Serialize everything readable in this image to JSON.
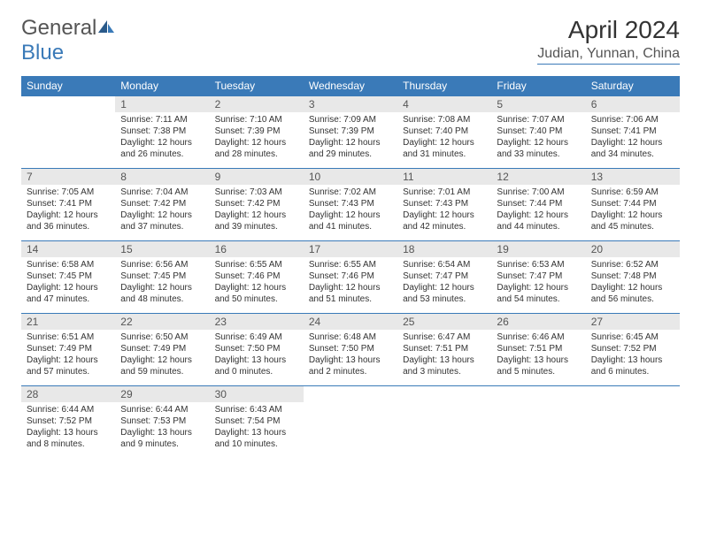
{
  "logo": {
    "text1": "General",
    "text2": "Blue"
  },
  "title": "April 2024",
  "location": "Judian, Yunnan, China",
  "colors": {
    "header_bg": "#3a7ab8",
    "header_fg": "#ffffff",
    "daynum_bg": "#e8e8e8",
    "border": "#3a7ab8",
    "text": "#333333"
  },
  "weekdays": [
    "Sunday",
    "Monday",
    "Tuesday",
    "Wednesday",
    "Thursday",
    "Friday",
    "Saturday"
  ],
  "weeks": [
    [
      null,
      {
        "n": "1",
        "sr": "7:11 AM",
        "ss": "7:38 PM",
        "dl": "12 hours and 26 minutes."
      },
      {
        "n": "2",
        "sr": "7:10 AM",
        "ss": "7:39 PM",
        "dl": "12 hours and 28 minutes."
      },
      {
        "n": "3",
        "sr": "7:09 AM",
        "ss": "7:39 PM",
        "dl": "12 hours and 29 minutes."
      },
      {
        "n": "4",
        "sr": "7:08 AM",
        "ss": "7:40 PM",
        "dl": "12 hours and 31 minutes."
      },
      {
        "n": "5",
        "sr": "7:07 AM",
        "ss": "7:40 PM",
        "dl": "12 hours and 33 minutes."
      },
      {
        "n": "6",
        "sr": "7:06 AM",
        "ss": "7:41 PM",
        "dl": "12 hours and 34 minutes."
      }
    ],
    [
      {
        "n": "7",
        "sr": "7:05 AM",
        "ss": "7:41 PM",
        "dl": "12 hours and 36 minutes."
      },
      {
        "n": "8",
        "sr": "7:04 AM",
        "ss": "7:42 PM",
        "dl": "12 hours and 37 minutes."
      },
      {
        "n": "9",
        "sr": "7:03 AM",
        "ss": "7:42 PM",
        "dl": "12 hours and 39 minutes."
      },
      {
        "n": "10",
        "sr": "7:02 AM",
        "ss": "7:43 PM",
        "dl": "12 hours and 41 minutes."
      },
      {
        "n": "11",
        "sr": "7:01 AM",
        "ss": "7:43 PM",
        "dl": "12 hours and 42 minutes."
      },
      {
        "n": "12",
        "sr": "7:00 AM",
        "ss": "7:44 PM",
        "dl": "12 hours and 44 minutes."
      },
      {
        "n": "13",
        "sr": "6:59 AM",
        "ss": "7:44 PM",
        "dl": "12 hours and 45 minutes."
      }
    ],
    [
      {
        "n": "14",
        "sr": "6:58 AM",
        "ss": "7:45 PM",
        "dl": "12 hours and 47 minutes."
      },
      {
        "n": "15",
        "sr": "6:56 AM",
        "ss": "7:45 PM",
        "dl": "12 hours and 48 minutes."
      },
      {
        "n": "16",
        "sr": "6:55 AM",
        "ss": "7:46 PM",
        "dl": "12 hours and 50 minutes."
      },
      {
        "n": "17",
        "sr": "6:55 AM",
        "ss": "7:46 PM",
        "dl": "12 hours and 51 minutes."
      },
      {
        "n": "18",
        "sr": "6:54 AM",
        "ss": "7:47 PM",
        "dl": "12 hours and 53 minutes."
      },
      {
        "n": "19",
        "sr": "6:53 AM",
        "ss": "7:47 PM",
        "dl": "12 hours and 54 minutes."
      },
      {
        "n": "20",
        "sr": "6:52 AM",
        "ss": "7:48 PM",
        "dl": "12 hours and 56 minutes."
      }
    ],
    [
      {
        "n": "21",
        "sr": "6:51 AM",
        "ss": "7:49 PM",
        "dl": "12 hours and 57 minutes."
      },
      {
        "n": "22",
        "sr": "6:50 AM",
        "ss": "7:49 PM",
        "dl": "12 hours and 59 minutes."
      },
      {
        "n": "23",
        "sr": "6:49 AM",
        "ss": "7:50 PM",
        "dl": "13 hours and 0 minutes."
      },
      {
        "n": "24",
        "sr": "6:48 AM",
        "ss": "7:50 PM",
        "dl": "13 hours and 2 minutes."
      },
      {
        "n": "25",
        "sr": "6:47 AM",
        "ss": "7:51 PM",
        "dl": "13 hours and 3 minutes."
      },
      {
        "n": "26",
        "sr": "6:46 AM",
        "ss": "7:51 PM",
        "dl": "13 hours and 5 minutes."
      },
      {
        "n": "27",
        "sr": "6:45 AM",
        "ss": "7:52 PM",
        "dl": "13 hours and 6 minutes."
      }
    ],
    [
      {
        "n": "28",
        "sr": "6:44 AM",
        "ss": "7:52 PM",
        "dl": "13 hours and 8 minutes."
      },
      {
        "n": "29",
        "sr": "6:44 AM",
        "ss": "7:53 PM",
        "dl": "13 hours and 9 minutes."
      },
      {
        "n": "30",
        "sr": "6:43 AM",
        "ss": "7:54 PM",
        "dl": "13 hours and 10 minutes."
      },
      null,
      null,
      null,
      null
    ]
  ],
  "labels": {
    "sunrise": "Sunrise:",
    "sunset": "Sunset:",
    "daylight": "Daylight:"
  }
}
